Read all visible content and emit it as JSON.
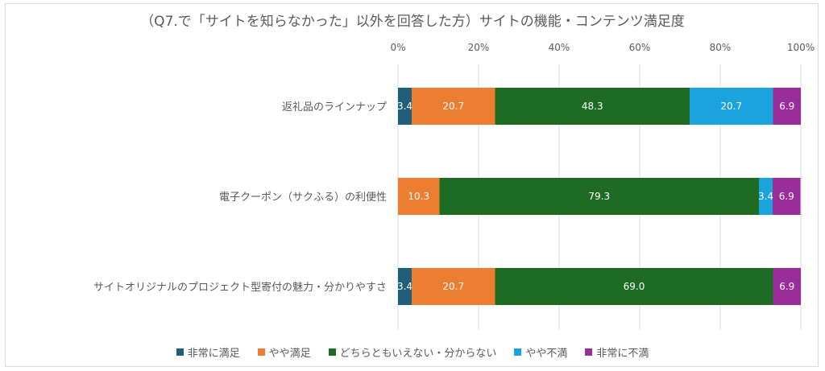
{
  "chart_data": {
    "type": "bar",
    "orientation": "horizontal",
    "stacked": "percent",
    "title": "（Q7.で「サイトを知らなかった」以外を回答した方）サイトの機能・コンテンツ満足度",
    "categories": [
      "返礼品のラインナップ",
      "電子クーポン（サクふる）の利便性",
      "サイトオリジナルのプロジェクト型寄付の魅力・分かりやすさ"
    ],
    "series": [
      {
        "name": "非常に満足",
        "color": "#1f5f7a",
        "values": [
          3.4,
          0,
          3.4
        ]
      },
      {
        "name": "やや満足",
        "color": "#ed7d31",
        "values": [
          20.7,
          10.3,
          20.7
        ]
      },
      {
        "name": "どちらともいえない・分からない",
        "color": "#1e6b24",
        "values": [
          48.3,
          79.3,
          69.0
        ]
      },
      {
        "name": "やや不満",
        "color": "#1aa3dc",
        "values": [
          20.7,
          3.4,
          0
        ]
      },
      {
        "name": "非常に不満",
        "color": "#9b2d9b",
        "values": [
          6.9,
          6.9,
          6.9
        ]
      }
    ],
    "data_labels": [
      [
        "3.4",
        "20.7",
        "48.3",
        "20.7",
        "6.9"
      ],
      [
        "",
        "10.3",
        "79.3",
        "3.4",
        "6.9"
      ],
      [
        "3.4",
        "20.7",
        "69.0",
        "",
        "6.9"
      ]
    ],
    "xlim": [
      0,
      100
    ],
    "xticks": [
      "0%",
      "20%",
      "40%",
      "60%",
      "80%",
      "100%"
    ],
    "grid": true,
    "legend_position": "bottom"
  }
}
